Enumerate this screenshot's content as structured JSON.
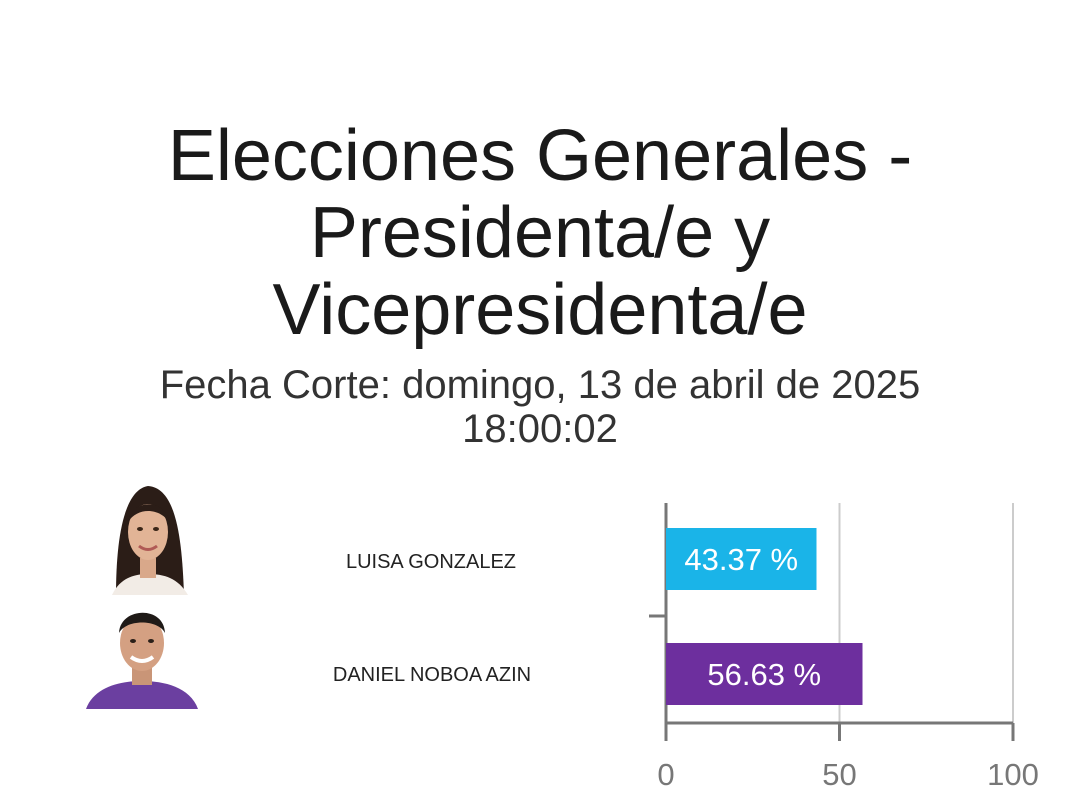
{
  "header": {
    "title_lines": [
      "Elecciones Generales -",
      "Presidenta/e y",
      "Vicepresidenta/e"
    ],
    "subtitle_lines": [
      "Fecha Corte: domingo, 13 de abril de 2025",
      "18:00:02"
    ]
  },
  "candidates": [
    {
      "name": "LUISA GONZALEZ",
      "avatar_icon": "woman-portrait-icon"
    },
    {
      "name": "DANIEL NOBOA AZIN",
      "avatar_icon": "man-portrait-icon"
    }
  ],
  "chart_data": {
    "type": "bar",
    "orientation": "horizontal",
    "categories": [
      "LUISA GONZALEZ",
      "DANIEL NOBOA AZIN"
    ],
    "values": [
      43.37,
      56.63
    ],
    "data_labels": [
      "43.37 %",
      "56.63 %"
    ],
    "colors": [
      "#1ab4e8",
      "#6d2f9e"
    ],
    "xlim": [
      0,
      100
    ],
    "x_ticks": [
      0,
      50,
      100
    ],
    "x_tick_labels": [
      "0",
      "50",
      "100"
    ],
    "grid": true,
    "title": "",
    "xlabel": "",
    "ylabel": ""
  }
}
